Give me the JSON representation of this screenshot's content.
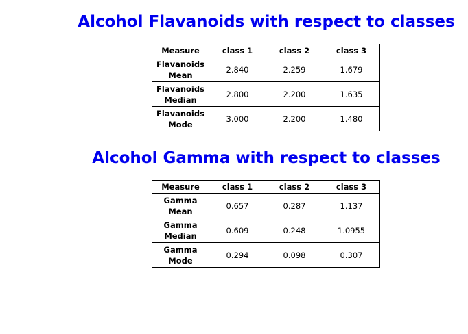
{
  "flavanoids": {
    "title": "Alcohol Flavanoids with respect to classes",
    "headers": [
      "Measure",
      "class 1",
      "class 2",
      "class 3"
    ],
    "rows": [
      {
        "measure_line1": "Flavanoids",
        "measure_line2": "Mean",
        "values": [
          "2.840",
          "2.259",
          "1.679"
        ]
      },
      {
        "measure_line1": "Flavanoids",
        "measure_line2": "Median",
        "values": [
          "2.800",
          "2.200",
          "1.635"
        ]
      },
      {
        "measure_line1": "Flavanoids",
        "measure_line2": "Mode",
        "values": [
          "3.000",
          "2.200",
          "1.480"
        ]
      }
    ]
  },
  "gamma": {
    "title": "Alcohol Gamma with respect to classes",
    "headers": [
      "Measure",
      "class 1",
      "class 2",
      "class 3"
    ],
    "rows": [
      {
        "measure_line1": "Gamma",
        "measure_line2": "Mean",
        "values": [
          "0.657",
          "0.287",
          "1.137"
        ]
      },
      {
        "measure_line1": "Gamma",
        "measure_line2": "Median",
        "values": [
          "0.609",
          "0.248",
          "1.0955"
        ]
      },
      {
        "measure_line1": "Gamma",
        "measure_line2": "Mode",
        "values": [
          "0.294",
          "0.098",
          "0.307"
        ]
      }
    ]
  },
  "colors": {
    "heading": "#0000ee",
    "border": "#000000",
    "background": "#ffffff"
  }
}
